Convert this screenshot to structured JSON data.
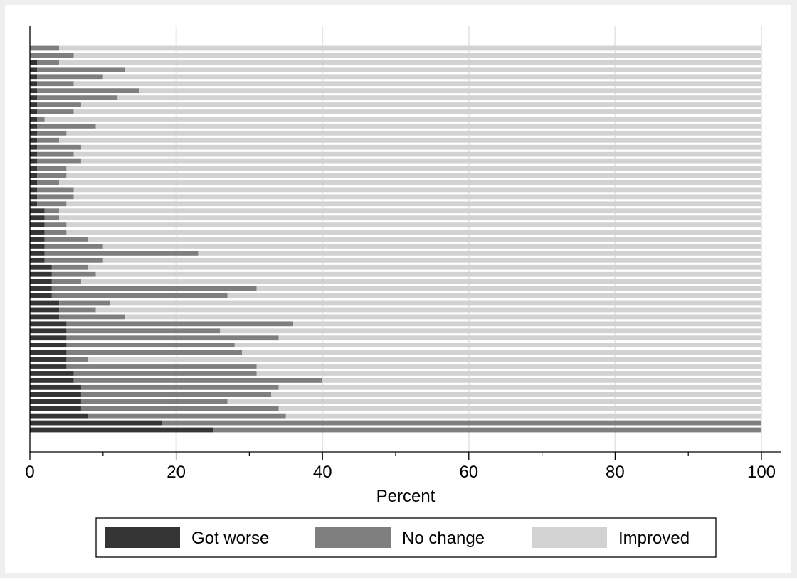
{
  "chart_data": {
    "type": "bar",
    "orientation": "horizontal",
    "stacked": true,
    "xlabel": "Percent",
    "xlim": [
      0,
      100
    ],
    "xticks": [
      "0",
      "20",
      "40",
      "60",
      "80",
      "100"
    ],
    "grid": true,
    "legend_position": "bottom",
    "series": [
      {
        "name": "Got worse",
        "color": "#353535",
        "values": [
          0,
          0,
          1,
          1,
          1,
          1,
          1,
          1,
          1,
          1,
          1,
          1,
          1,
          1,
          1,
          1,
          1,
          1,
          1,
          1,
          1,
          1,
          1,
          2,
          2,
          2,
          2,
          2,
          2,
          2,
          2,
          3,
          3,
          3,
          3,
          3,
          4,
          4,
          4,
          5,
          5,
          5,
          5,
          5,
          5,
          5,
          6,
          6,
          7,
          7,
          7,
          7,
          8,
          18,
          25
        ]
      },
      {
        "name": "No change",
        "color": "#7f7f7f",
        "values": [
          4,
          6,
          3,
          12,
          9,
          5,
          14,
          11,
          6,
          5,
          1,
          8,
          4,
          3,
          6,
          5,
          6,
          4,
          4,
          3,
          5,
          5,
          4,
          2,
          2,
          3,
          3,
          6,
          8,
          21,
          8,
          5,
          6,
          4,
          28,
          24,
          7,
          5,
          9,
          31,
          21,
          29,
          23,
          24,
          3,
          26,
          25,
          34,
          27,
          26,
          20,
          27,
          27,
          82,
          75
        ]
      },
      {
        "name": "Improved",
        "color": "#d2d2d2",
        "values": [
          96,
          94,
          96,
          87,
          90,
          94,
          85,
          88,
          93,
          94,
          98,
          91,
          95,
          96,
          93,
          94,
          93,
          95,
          95,
          96,
          94,
          94,
          95,
          96,
          96,
          95,
          95,
          92,
          90,
          77,
          90,
          92,
          91,
          93,
          69,
          73,
          89,
          91,
          87,
          64,
          74,
          66,
          72,
          71,
          92,
          69,
          69,
          60,
          66,
          67,
          73,
          66,
          65,
          0,
          0
        ]
      }
    ]
  },
  "colors": {
    "outer_background": "#efefef",
    "plot_background": "#ffffff",
    "grid": "#e6e6e6"
  }
}
